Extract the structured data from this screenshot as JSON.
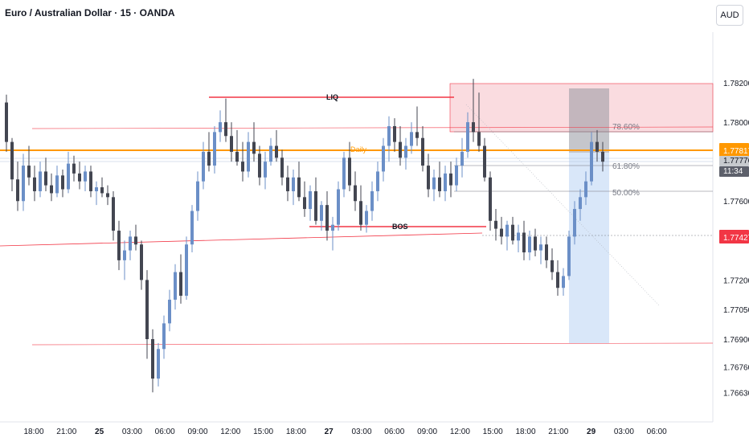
{
  "header": {
    "symbol_title": "Euro / Australian Dollar · 15 · OANDA",
    "currency_button": "AUD"
  },
  "chart_data": {
    "type": "candlestick",
    "title": "Euro / Australian Dollar · 15 · OANDA",
    "price_axis": {
      "ticks": [
        "1.78200",
        "1.78000",
        "1.77600",
        "1.77200",
        "1.77050",
        "1.76900",
        "1.76760",
        "1.76630"
      ],
      "range": [
        1.7663,
        1.7822
      ]
    },
    "time_axis": {
      "ticks": [
        "18:00",
        "21:00",
        "25",
        "03:00",
        "06:00",
        "09:00",
        "12:00",
        "15:00",
        "18:00",
        "27",
        "03:00",
        "06:00",
        "09:00",
        "12:00",
        "15:00",
        "18:00",
        "21:00",
        "29",
        "03:00",
        "06:00"
      ],
      "bold_ticks": [
        "25",
        "27",
        "29"
      ]
    },
    "price_labels": [
      {
        "value": "1.77817",
        "color": "#ff9800",
        "text_color": "#ffffff"
      },
      {
        "value": "1.77776",
        "color": "#c7cace",
        "text_color": "#131722"
      },
      {
        "value": "11:34",
        "color": "#5d606b",
        "text_color": "#ffffff"
      },
      {
        "value": "1.77427",
        "color": "#f23645",
        "text_color": "#ffffff"
      }
    ],
    "annotations": {
      "liq": "LIQ",
      "bos": "BOS",
      "daily": "Daily",
      "fib_78": "78.60%",
      "fib_61": "61.80%",
      "fib_50": "50.00%"
    },
    "colors": {
      "up": "#6b8fc7",
      "down": "#434651",
      "orange": "#ff9800",
      "red": "#f23645",
      "zone_red": "#f7c5cb",
      "zone_blue": "#cfe1f7"
    },
    "candles": [
      [
        1.781,
        1.7814,
        1.7785,
        1.779
      ],
      [
        1.779,
        1.7792,
        1.7765,
        1.7771
      ],
      [
        1.7771,
        1.778,
        1.7755,
        1.776
      ],
      [
        1.776,
        1.7784,
        1.7755,
        1.7778
      ],
      [
        1.7778,
        1.7788,
        1.7768,
        1.7772
      ],
      [
        1.7772,
        1.7778,
        1.776,
        1.7765
      ],
      [
        1.7765,
        1.778,
        1.7762,
        1.7775
      ],
      [
        1.7775,
        1.7782,
        1.7765,
        1.7768
      ],
      [
        1.7768,
        1.7774,
        1.776,
        1.7764
      ],
      [
        1.7764,
        1.7778,
        1.7762,
        1.7773
      ],
      [
        1.7773,
        1.7776,
        1.7762,
        1.7766
      ],
      [
        1.7766,
        1.7785,
        1.7764,
        1.7779
      ],
      [
        1.7779,
        1.7783,
        1.777,
        1.7774
      ],
      [
        1.7774,
        1.778,
        1.7766,
        1.777
      ],
      [
        1.777,
        1.7778,
        1.7765,
        1.7775
      ],
      [
        1.7775,
        1.7778,
        1.7762,
        1.7765
      ],
      [
        1.7765,
        1.777,
        1.7758,
        1.7767
      ],
      [
        1.7767,
        1.7772,
        1.7762,
        1.7764
      ],
      [
        1.7764,
        1.7768,
        1.7758,
        1.7762
      ],
      [
        1.7762,
        1.7765,
        1.774,
        1.7745
      ],
      [
        1.7745,
        1.775,
        1.7725,
        1.773
      ],
      [
        1.773,
        1.774,
        1.772,
        1.7735
      ],
      [
        1.7735,
        1.7745,
        1.773,
        1.7742
      ],
      [
        1.7742,
        1.7748,
        1.7735,
        1.7738
      ],
      [
        1.7738,
        1.774,
        1.7715,
        1.772
      ],
      [
        1.772,
        1.7725,
        1.768,
        1.769
      ],
      [
        1.769,
        1.7695,
        1.7663,
        1.767
      ],
      [
        1.767,
        1.7688,
        1.7666,
        1.7685
      ],
      [
        1.7685,
        1.7702,
        1.768,
        1.7698
      ],
      [
        1.7698,
        1.7715,
        1.7694,
        1.771
      ],
      [
        1.771,
        1.7728,
        1.7705,
        1.7724
      ],
      [
        1.7724,
        1.7733,
        1.7708,
        1.7712
      ],
      [
        1.7712,
        1.7742,
        1.771,
        1.7738
      ],
      [
        1.7738,
        1.7758,
        1.7734,
        1.7755
      ],
      [
        1.7755,
        1.7775,
        1.775,
        1.777
      ],
      [
        1.777,
        1.779,
        1.7766,
        1.7785
      ],
      [
        1.7785,
        1.7795,
        1.7775,
        1.7778
      ],
      [
        1.7778,
        1.7798,
        1.7774,
        1.7795
      ],
      [
        1.7795,
        1.7806,
        1.779,
        1.78
      ],
      [
        1.78,
        1.7812,
        1.779,
        1.7793
      ],
      [
        1.7793,
        1.78,
        1.778,
        1.7785
      ],
      [
        1.7785,
        1.7796,
        1.7778,
        1.778
      ],
      [
        1.778,
        1.779,
        1.777,
        1.7775
      ],
      [
        1.7775,
        1.7795,
        1.7772,
        1.779
      ],
      [
        1.779,
        1.78,
        1.778,
        1.7784
      ],
      [
        1.7784,
        1.7788,
        1.7768,
        1.7772
      ],
      [
        1.7772,
        1.7785,
        1.7766,
        1.778
      ],
      [
        1.778,
        1.7792,
        1.7778,
        1.7788
      ],
      [
        1.7788,
        1.7796,
        1.778,
        1.7782
      ],
      [
        1.7782,
        1.7786,
        1.7768,
        1.7772
      ],
      [
        1.7772,
        1.7778,
        1.776,
        1.7765
      ],
      [
        1.7765,
        1.7776,
        1.7758,
        1.7772
      ],
      [
        1.7772,
        1.778,
        1.776,
        1.7762
      ],
      [
        1.7762,
        1.777,
        1.7752,
        1.7756
      ],
      [
        1.7756,
        1.7768,
        1.775,
        1.7765
      ],
      [
        1.7765,
        1.7772,
        1.7748,
        1.775
      ],
      [
        1.775,
        1.776,
        1.7745,
        1.7758
      ],
      [
        1.7758,
        1.7765,
        1.774,
        1.7745
      ],
      [
        1.7745,
        1.7752,
        1.7735,
        1.7748
      ],
      [
        1.7748,
        1.777,
        1.7745,
        1.7766
      ],
      [
        1.7766,
        1.7785,
        1.7762,
        1.7782
      ],
      [
        1.7782,
        1.779,
        1.7765,
        1.7768
      ],
      [
        1.7768,
        1.7775,
        1.7755,
        1.776
      ],
      [
        1.776,
        1.7768,
        1.7745,
        1.7748
      ],
      [
        1.7748,
        1.7758,
        1.7744,
        1.7755
      ],
      [
        1.7755,
        1.777,
        1.775,
        1.7765
      ],
      [
        1.7765,
        1.778,
        1.776,
        1.7775
      ],
      [
        1.7775,
        1.7792,
        1.777,
        1.7788
      ],
      [
        1.7788,
        1.7803,
        1.778,
        1.7798
      ],
      [
        1.7798,
        1.7802,
        1.7785,
        1.779
      ],
      [
        1.779,
        1.7798,
        1.7778,
        1.7782
      ],
      [
        1.7782,
        1.7792,
        1.7776,
        1.7788
      ],
      [
        1.7788,
        1.78,
        1.7784,
        1.7795
      ],
      [
        1.7795,
        1.7808,
        1.7788,
        1.7792
      ],
      [
        1.7792,
        1.7798,
        1.7775,
        1.7778
      ],
      [
        1.7778,
        1.7784,
        1.7762,
        1.7766
      ],
      [
        1.7766,
        1.7776,
        1.776,
        1.7772
      ],
      [
        1.7772,
        1.778,
        1.7762,
        1.7765
      ],
      [
        1.7765,
        1.7778,
        1.776,
        1.7774
      ],
      [
        1.7774,
        1.778,
        1.7762,
        1.7768
      ],
      [
        1.7768,
        1.7782,
        1.7765,
        1.7778
      ],
      [
        1.7778,
        1.7792,
        1.7772,
        1.7785
      ],
      [
        1.7785,
        1.7805,
        1.7782,
        1.78
      ],
      [
        1.78,
        1.7822,
        1.779,
        1.7795
      ],
      [
        1.7795,
        1.7815,
        1.7785,
        1.7788
      ],
      [
        1.7788,
        1.7792,
        1.777,
        1.7772
      ],
      [
        1.7772,
        1.7775,
        1.7745,
        1.775
      ],
      [
        1.775,
        1.7756,
        1.774,
        1.7746
      ],
      [
        1.7746,
        1.7752,
        1.7738,
        1.7742
      ],
      [
        1.7742,
        1.775,
        1.7735,
        1.7748
      ],
      [
        1.7748,
        1.7752,
        1.7738,
        1.774
      ],
      [
        1.774,
        1.7748,
        1.7734,
        1.7744
      ],
      [
        1.7744,
        1.775,
        1.773,
        1.7734
      ],
      [
        1.7734,
        1.7745,
        1.773,
        1.7742
      ],
      [
        1.7742,
        1.7746,
        1.7732,
        1.7735
      ],
      [
        1.7735,
        1.7742,
        1.7728,
        1.7738
      ],
      [
        1.7738,
        1.7742,
        1.7726,
        1.773
      ],
      [
        1.773,
        1.7736,
        1.772,
        1.7724
      ],
      [
        1.7724,
        1.773,
        1.7712,
        1.7716
      ],
      [
        1.7716,
        1.7726,
        1.7712,
        1.7722
      ],
      [
        1.7722,
        1.7745,
        1.772,
        1.7742
      ],
      [
        1.7742,
        1.776,
        1.7738,
        1.7756
      ],
      [
        1.7756,
        1.7766,
        1.775,
        1.7762
      ],
      [
        1.7762,
        1.7775,
        1.7758,
        1.777
      ],
      [
        1.777,
        1.7795,
        1.7768,
        1.779
      ],
      [
        1.779,
        1.7796,
        1.778,
        1.7785
      ],
      [
        1.7785,
        1.779,
        1.7775,
        1.778
      ]
    ]
  }
}
